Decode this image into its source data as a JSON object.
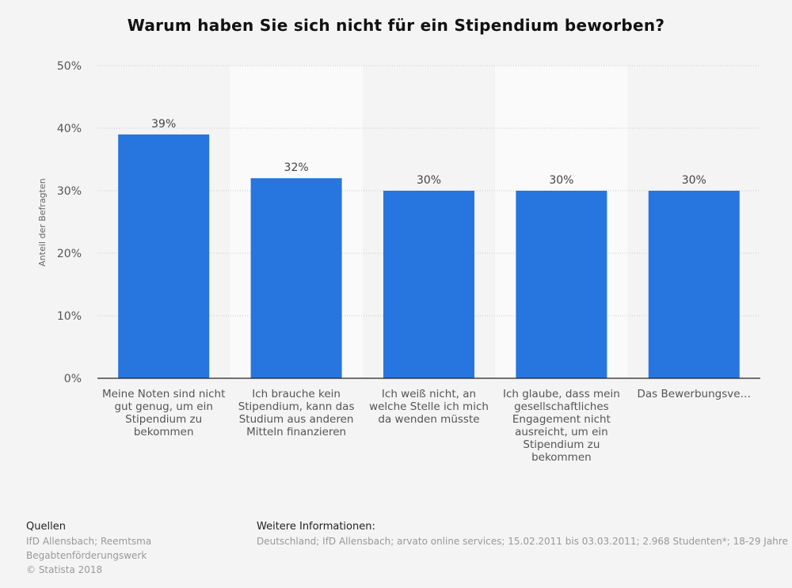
{
  "chart_data": {
    "type": "bar",
    "title": "Warum haben Sie sich nicht für ein Stipendium beworben?",
    "ylabel": "Anteil der Befragten",
    "xlabel": "",
    "ylim": [
      0,
      50
    ],
    "yticks": [
      "0%",
      "10%",
      "20%",
      "30%",
      "40%",
      "50%"
    ],
    "grid": true,
    "categories": [
      "Meine Noten sind nicht gut genug, um ein Stipendium zu bekommen",
      "Ich brauche kein Stipendium, kann das Studium aus anderen Mitteln finanzieren",
      "Ich weiß nicht, an welche Stelle ich mich da wenden müsste",
      "Ich glaube, dass mein gesellschaftliches Engagement nicht ausreicht, um ein Stipendium zu bekommen",
      "Das Bewerbungsve…"
    ],
    "values": [
      39,
      32,
      30,
      30,
      30
    ],
    "data_labels": [
      "39%",
      "32%",
      "30%",
      "30%",
      "30%"
    ],
    "bar_color": "#2775de"
  },
  "footer": {
    "sources_heading": "Quellen",
    "sources_lines": [
      "IfD Allensbach; Reemtsma",
      "Begabtenförderungswerk",
      "© Statista 2018"
    ],
    "info_heading": "Weitere Informationen:",
    "info_text": "Deutschland; IfD Allensbach; arvato online services; 15.02.2011 bis 03.03.2011; 2.968 Studenten*; 18-29 Jahre"
  }
}
